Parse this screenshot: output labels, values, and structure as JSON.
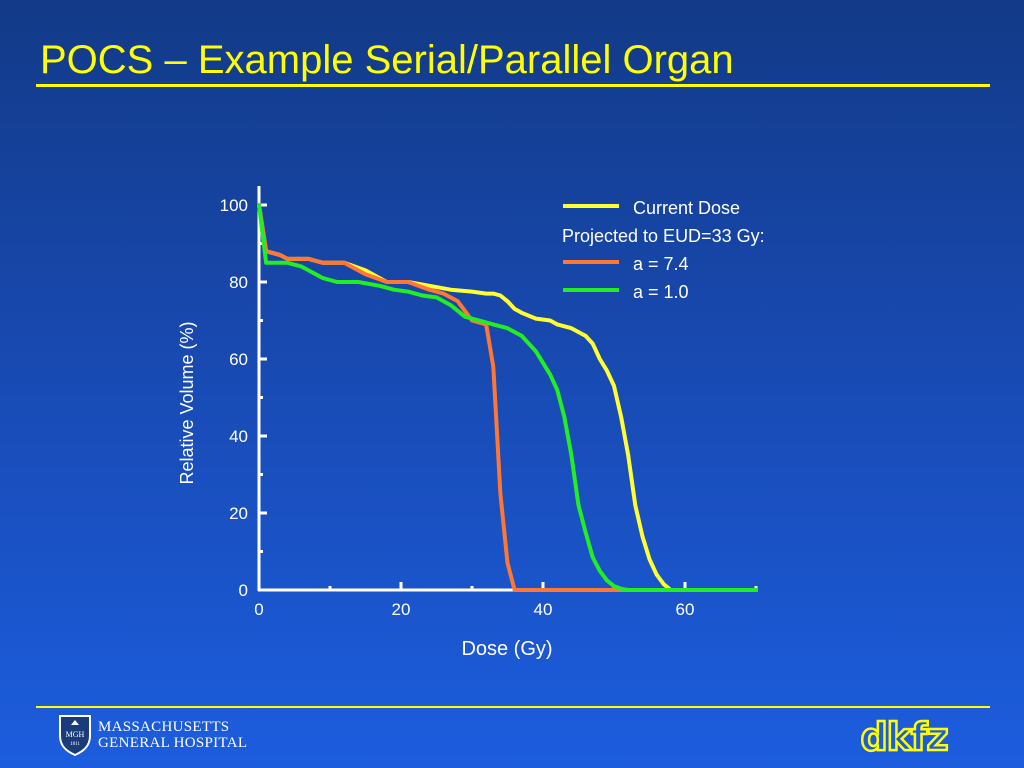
{
  "slide": {
    "title": "POCS – Example Serial/Parallel Organ"
  },
  "footer": {
    "mgh_seal_text": [
      "MGH",
      "1811"
    ],
    "mgh_line1": "MASSACHUSETTS",
    "mgh_line2": "GENERAL HOSPITAL",
    "dkfz_logo_text": "dkfz"
  },
  "colors": {
    "background_top": "#123a87",
    "background_bottom": "#1c5dde",
    "title": "#ffff00",
    "axis": "#ffffff"
  },
  "chart_data": {
    "type": "line",
    "title": "",
    "xlabel": "Dose (Gy)",
    "ylabel": "Relative Volume (%)",
    "xlim": [
      0,
      70
    ],
    "ylim": [
      0,
      100
    ],
    "xticks": [
      0,
      20,
      40,
      60
    ],
    "yticks": [
      0,
      20,
      40,
      60,
      80,
      100
    ],
    "grid": false,
    "legend_position": "top-right",
    "legend_header": "Projected to EUD=33 Gy:",
    "series": [
      {
        "name": "Current Dose",
        "color": "#ffff33",
        "x": [
          0,
          1,
          3,
          4,
          7,
          9,
          12,
          15,
          18,
          21,
          24,
          27,
          30,
          32,
          33,
          34,
          35,
          36,
          37,
          39,
          41,
          42,
          44,
          46,
          47,
          48,
          49,
          50,
          51,
          52,
          53,
          54,
          55,
          56,
          57,
          58,
          70
        ],
        "y": [
          100,
          88,
          87,
          86,
          86,
          85,
          85,
          83,
          80,
          80,
          79,
          78,
          77.5,
          77,
          77,
          76.5,
          75,
          73,
          72,
          70.5,
          70,
          69,
          68,
          66,
          64,
          60,
          57,
          53,
          45,
          35,
          22,
          14,
          8,
          4,
          1.5,
          0,
          0
        ]
      },
      {
        "name": "a = 7.4",
        "color": "#ff7733",
        "x": [
          0,
          1,
          3,
          4,
          7,
          9,
          12,
          15,
          18,
          21,
          24,
          26,
          28,
          30,
          32,
          33,
          34,
          35,
          36,
          70
        ],
        "y": [
          100,
          88,
          87,
          86,
          86,
          85,
          85,
          82,
          80,
          80,
          78,
          77,
          75,
          70,
          69,
          58,
          25,
          7,
          0,
          0
        ]
      },
      {
        "name": "a = 1.0",
        "color": "#22ee22",
        "x": [
          0,
          1,
          4,
          6,
          9,
          11,
          14,
          17,
          19,
          21,
          22,
          23,
          25,
          27,
          29,
          31,
          33,
          35,
          37,
          39,
          41,
          42,
          43,
          44,
          45,
          46,
          47,
          48,
          49,
          50,
          51,
          52,
          70
        ],
        "y": [
          100,
          85,
          85,
          84,
          81,
          80,
          80,
          79,
          78,
          77.5,
          77,
          76.5,
          76,
          74,
          71,
          70,
          69,
          68,
          66,
          62,
          56,
          52,
          45,
          35,
          22,
          15,
          8.5,
          5,
          2.5,
          1,
          0.3,
          0,
          0
        ]
      }
    ]
  }
}
